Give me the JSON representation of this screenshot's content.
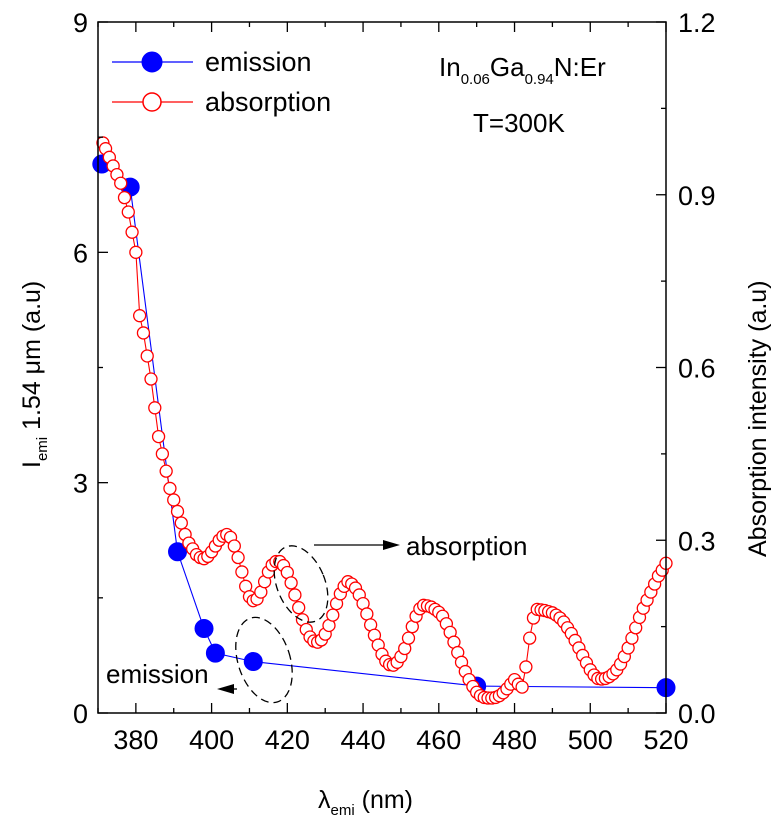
{
  "chart_data": {
    "type": "line",
    "xlabel": {
      "symbol": "λ",
      "sub": "emi",
      "rest": " (nm)"
    },
    "ylabel_left": {
      "prefix": "I",
      "sub": "emi",
      "rest": " 1.54 μm (a.u)"
    },
    "ylabel_right": "Absorption intensity (a.u)",
    "xlim": [
      370,
      520
    ],
    "ylim_left": [
      0,
      9
    ],
    "ylim_right": [
      0.0,
      1.2
    ],
    "x_ticks": [
      "380",
      "400",
      "420",
      "440",
      "460",
      "480",
      "500",
      "520"
    ],
    "y_left_ticks": [
      "0",
      "3",
      "6",
      "9"
    ],
    "y_right_ticks": [
      "0.0",
      "0.3",
      "0.6",
      "0.9",
      "1.2"
    ],
    "colors": {
      "emission": "#0000ff",
      "absorption": "#ff0000"
    },
    "annotation_box": {
      "line1_parts": [
        {
          "t": "In",
          "sub": false
        },
        {
          "t": "0.06",
          "sub": true
        },
        {
          "t": "Ga",
          "sub": false
        },
        {
          "t": "0.94",
          "sub": true
        },
        {
          "t": "N:Er",
          "sub": false
        }
      ],
      "line2": "T=300K"
    },
    "arrow_labels": {
      "absorption": "absorption",
      "emission": "emission"
    },
    "series": [
      {
        "name": "emission",
        "axis": "left",
        "marker": "filled-circle",
        "x": [
          371,
          378.5,
          391,
          398,
          401,
          411,
          470,
          520
        ],
        "y": [
          7.15,
          6.85,
          2.1,
          1.1,
          0.78,
          0.67,
          0.35,
          0.33
        ]
      },
      {
        "name": "absorption",
        "axis": "right",
        "marker": "open-circle",
        "x": [
          371.3,
          372,
          373,
          374,
          375,
          376,
          377,
          378,
          379,
          380,
          381,
          382,
          383,
          384,
          385,
          386,
          387,
          388,
          389,
          390,
          391,
          392,
          393,
          394,
          395,
          396,
          397,
          398,
          399,
          400,
          401,
          402,
          403,
          404,
          405,
          406,
          407,
          408,
          409,
          410,
          411,
          412,
          413,
          414,
          415,
          416,
          417,
          418,
          419,
          420,
          421,
          422,
          423,
          424,
          425,
          426,
          427,
          428,
          429,
          430,
          431,
          432,
          433,
          434,
          435,
          436,
          437,
          438,
          439,
          440,
          441,
          442,
          443,
          444,
          445,
          446,
          447,
          448,
          449,
          450,
          451,
          452,
          453,
          454,
          455,
          456,
          457,
          458,
          459,
          460,
          461,
          462,
          463,
          464,
          465,
          466,
          467,
          468,
          469,
          470,
          471,
          472,
          473,
          474,
          475,
          476,
          477,
          478,
          479,
          480,
          481,
          482,
          483,
          484,
          485,
          486,
          487,
          488,
          489,
          490,
          491,
          492,
          493,
          494,
          495,
          496,
          497,
          498,
          499,
          500,
          501,
          502,
          503,
          504,
          505,
          506,
          507,
          508,
          509,
          510,
          511,
          512,
          513,
          514,
          515,
          516,
          517,
          518,
          519,
          520
        ],
        "y": [
          0.99,
          0.98,
          0.965,
          0.95,
          0.935,
          0.92,
          0.895,
          0.87,
          0.835,
          0.8,
          0.69,
          0.66,
          0.62,
          0.58,
          0.53,
          0.48,
          0.45,
          0.42,
          0.39,
          0.37,
          0.35,
          0.33,
          0.31,
          0.295,
          0.285,
          0.275,
          0.27,
          0.268,
          0.272,
          0.28,
          0.29,
          0.3,
          0.307,
          0.31,
          0.305,
          0.29,
          0.27,
          0.245,
          0.22,
          0.202,
          0.195,
          0.198,
          0.21,
          0.228,
          0.245,
          0.257,
          0.263,
          0.263,
          0.256,
          0.244,
          0.226,
          0.205,
          0.183,
          0.162,
          0.145,
          0.132,
          0.125,
          0.123,
          0.127,
          0.137,
          0.152,
          0.17,
          0.19,
          0.207,
          0.22,
          0.228,
          0.224,
          0.217,
          0.205,
          0.19,
          0.172,
          0.153,
          0.135,
          0.118,
          0.102,
          0.09,
          0.084,
          0.083,
          0.088,
          0.098,
          0.112,
          0.13,
          0.15,
          0.168,
          0.181,
          0.187,
          0.186,
          0.184,
          0.18,
          0.175,
          0.168,
          0.155,
          0.14,
          0.123,
          0.105,
          0.088,
          0.072,
          0.058,
          0.046,
          0.036,
          0.03,
          0.027,
          0.026,
          0.026,
          0.027,
          0.03,
          0.035,
          0.042,
          0.05,
          0.058,
          0.05,
          0.045,
          0.08,
          0.13,
          0.165,
          0.18,
          0.179,
          0.178,
          0.176,
          0.174,
          0.17,
          0.165,
          0.158,
          0.148,
          0.138,
          0.126,
          0.113,
          0.1,
          0.087,
          0.075,
          0.066,
          0.06,
          0.059,
          0.06,
          0.063,
          0.068,
          0.075,
          0.085,
          0.098,
          0.113,
          0.13,
          0.148,
          0.166,
          0.182,
          0.196,
          0.21,
          0.224,
          0.238,
          0.248,
          0.26
        ]
      }
    ]
  }
}
